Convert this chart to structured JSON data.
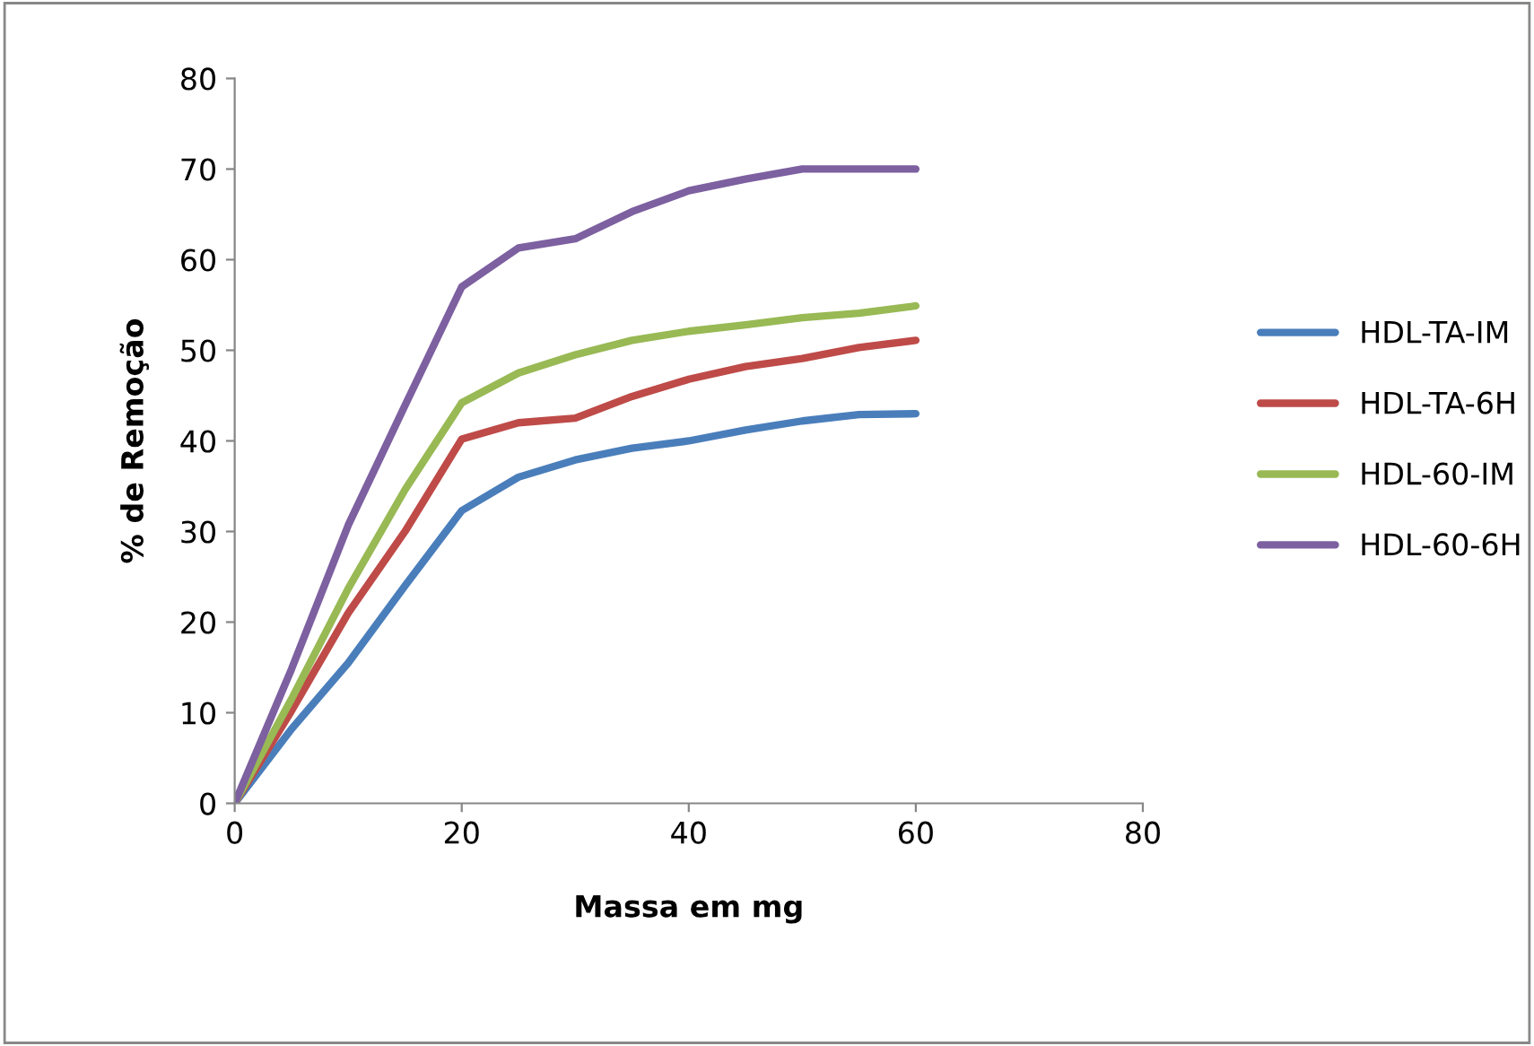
{
  "chart_data": {
    "type": "line",
    "xlabel": "Massa em mg",
    "ylabel": "% de Remoção",
    "x": [
      0,
      5,
      10,
      15,
      20,
      25,
      30,
      35,
      40,
      45,
      50,
      55,
      60
    ],
    "series": [
      {
        "name": "HDL-TA-IM",
        "color": "#4a7ebb",
        "values": [
          0,
          8.2,
          15.5,
          24,
          32.3,
          36,
          37.9,
          39.2,
          40,
          41.2,
          42.2,
          42.9,
          43
        ]
      },
      {
        "name": "HDL-TA-6H",
        "color": "#be4b48",
        "values": [
          0,
          10.2,
          21,
          30,
          40.2,
          42,
          42.5,
          44.9,
          46.8,
          48.2,
          49.1,
          50.3,
          51.1
        ]
      },
      {
        "name": "HDL-60-IM",
        "color": "#98b954",
        "values": [
          0,
          11.5,
          23.7,
          34.6,
          44.2,
          47.5,
          49.5,
          51.1,
          52.1,
          52.8,
          53.6,
          54.1,
          54.9
        ]
      },
      {
        "name": "HDL-60-6H",
        "color": "#7d60a0",
        "values": [
          0,
          14.8,
          30.7,
          43.9,
          57,
          61.3,
          62.3,
          65.3,
          67.6,
          68.9,
          70,
          70,
          70
        ]
      }
    ],
    "xlim": [
      0,
      80
    ],
    "xticks": [
      0,
      20,
      40,
      60,
      80
    ],
    "ylim": [
      0,
      80
    ],
    "yticks": [
      0,
      10,
      20,
      30,
      40,
      50,
      60,
      70,
      80
    ],
    "grid": false,
    "legend": "right",
    "marker": "none",
    "line_style": "solid"
  }
}
